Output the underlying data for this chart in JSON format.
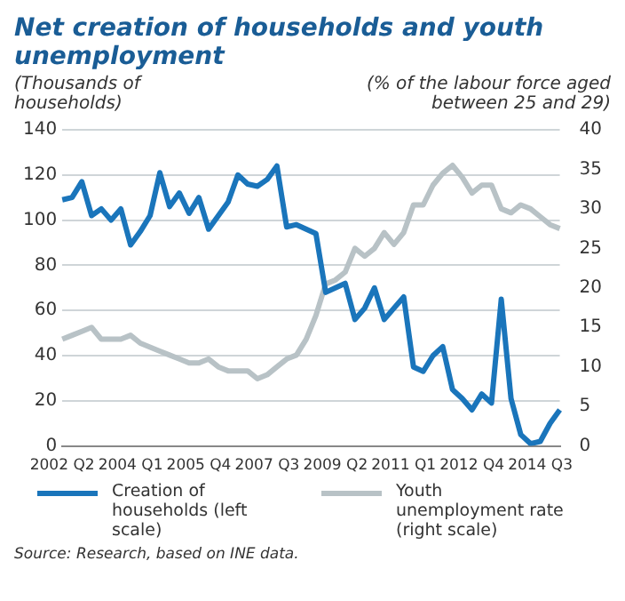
{
  "chart_data": {
    "type": "line",
    "title": "Net creation of households and youth unemployment",
    "ylabel": "(Thousands of households)",
    "y2label": "(% of the labour force aged between 25 and 29)",
    "categories": [
      "2002 Q2",
      null,
      null,
      null,
      null,
      null,
      null,
      "2004 Q1",
      null,
      null,
      null,
      null,
      null,
      null,
      "2005 Q4",
      null,
      null,
      null,
      null,
      null,
      null,
      "2007 Q3",
      null,
      null,
      null,
      null,
      null,
      null,
      "2009 Q2",
      null,
      null,
      null,
      null,
      null,
      null,
      "2011 Q1",
      null,
      null,
      null,
      null,
      null,
      null,
      "2012 Q4",
      null,
      null,
      null,
      null,
      null,
      null,
      "2014 Q3",
      null,
      null
    ],
    "series": [
      {
        "name": "Creation of households (left scale)",
        "color": "#1a75bb",
        "values": [
          109,
          110,
          117,
          102,
          105,
          100,
          105,
          89,
          95,
          102,
          121,
          106,
          112,
          103,
          110,
          96,
          102,
          108,
          120,
          116,
          115,
          118,
          124,
          97,
          98,
          96,
          94,
          68,
          70,
          72,
          56,
          61,
          70,
          56,
          61,
          66,
          35,
          33,
          40,
          44,
          25,
          21,
          16,
          23,
          19,
          65,
          21,
          5,
          1,
          2,
          10,
          16
        ]
      },
      {
        "name": "Youth unemployment rate (right scale)",
        "color": "#b8c2c6",
        "axis": "y2",
        "values": [
          13.5,
          14,
          14.5,
          15,
          13.5,
          13.5,
          13.5,
          14,
          13,
          12.5,
          12,
          11.5,
          11,
          10.5,
          10.5,
          11,
          10,
          9.5,
          9.5,
          9.5,
          8.5,
          9,
          10,
          11,
          11.5,
          13.5,
          16.5,
          20.5,
          21,
          22,
          25,
          24,
          25,
          27,
          25.5,
          27,
          30.5,
          30.5,
          33,
          34.5,
          35.5,
          34,
          32,
          33,
          33,
          30,
          29.5,
          30.5,
          30,
          29,
          28,
          27.5
        ]
      }
    ],
    "ylim": [
      0,
      140
    ],
    "yticks": [
      0,
      20,
      40,
      60,
      80,
      100,
      120,
      140
    ],
    "y2lim": [
      0,
      40
    ],
    "y2ticks": [
      0,
      5,
      10,
      15,
      20,
      25,
      30,
      35,
      40
    ],
    "grid": "y",
    "legend": "bottom",
    "marker": "none",
    "line_style": "solid",
    "annotations": [
      "Source: Research, based on INE data."
    ]
  }
}
